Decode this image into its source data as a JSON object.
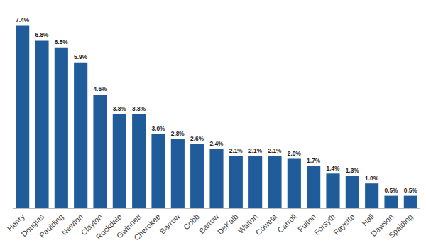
{
  "chart_data": {
    "type": "bar",
    "categories": [
      "Henry",
      "Douglas",
      "Paulding",
      "Newton",
      "Clayton",
      "Rockdale",
      "Gwinnett",
      "Cherokee",
      "Barrow",
      "Cobb",
      "Bartow",
      "DeKalb",
      "Walton",
      "Coweta",
      "Carroll",
      "Fulton",
      "Forsyth",
      "Fayette",
      "Hall",
      "Dawson",
      "Spalding"
    ],
    "values": [
      7.4,
      6.8,
      6.5,
      5.9,
      4.6,
      3.8,
      3.8,
      3.0,
      2.8,
      2.6,
      2.4,
      2.1,
      2.1,
      2.1,
      2.0,
      1.7,
      1.4,
      1.3,
      1.0,
      0.5,
      0.5
    ],
    "value_labels": [
      "7.4%",
      "6.8%",
      "6.5%",
      "5.9%",
      "4.6%",
      "3.8%",
      "3.8%",
      "3.0%",
      "2.8%",
      "2.6%",
      "2.4%",
      "2.1%",
      "2.1%",
      "2.1%",
      "2.0%",
      "1.7%",
      "1.4%",
      "1.3%",
      "1.0%",
      "0.5%",
      "0.5%"
    ],
    "color": "#1f5c99",
    "data_labels": true,
    "grid": false,
    "tick_labels": "x"
  }
}
